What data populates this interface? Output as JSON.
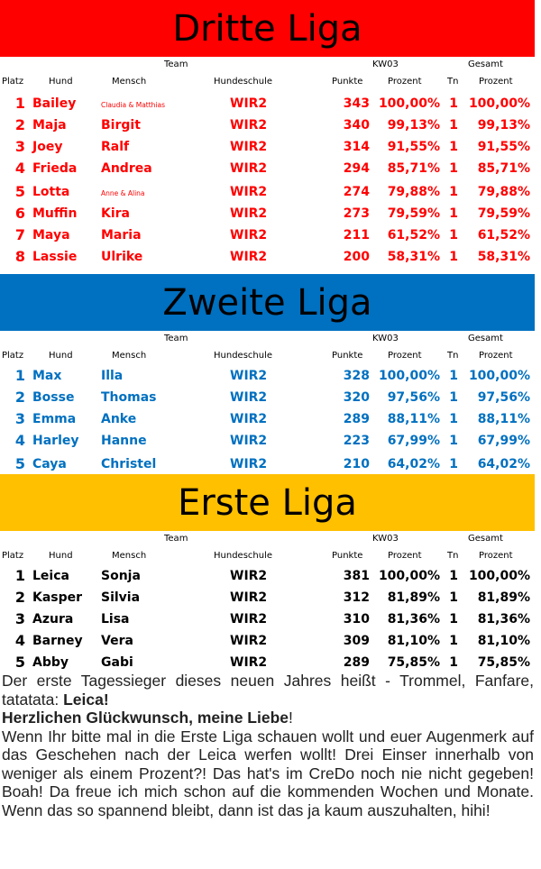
{
  "leagues": [
    {
      "title": "Dritte Liga",
      "color": "#ff0000",
      "banner_color": "#ff0000",
      "group_headers": {
        "team": "Team",
        "week": "KW03",
        "total": "Gesamt"
      },
      "columns": {
        "platz": "Platz",
        "hund": "Hund",
        "mensch": "Mensch",
        "schule": "Hundeschule",
        "punkte": "Punkte",
        "prozent": "Prozent",
        "tn": "Tn",
        "prozent_total": "Prozent"
      },
      "rows": [
        {
          "rank": "1",
          "dog": "Bailey",
          "human": "Claudia & Matthias",
          "school": "WIR2",
          "points": "343",
          "percent": "100,00%",
          "tn": "1",
          "total": "100,00%"
        },
        {
          "rank": "2",
          "dog": "Maja",
          "human": "Birgit",
          "school": "WIR2",
          "points": "340",
          "percent": "99,13%",
          "tn": "1",
          "total": "99,13%"
        },
        {
          "rank": "3",
          "dog": "Joey",
          "human": "Ralf",
          "school": "WIR2",
          "points": "314",
          "percent": "91,55%",
          "tn": "1",
          "total": "91,55%"
        },
        {
          "rank": "4",
          "dog": "Frieda",
          "human": "Andrea",
          "school": "WIR2",
          "points": "294",
          "percent": "85,71%",
          "tn": "1",
          "total": "85,71%"
        },
        {
          "rank": "5",
          "dog": "Lotta",
          "human": "Anne & Alina",
          "school": "WIR2",
          "points": "274",
          "percent": "79,88%",
          "tn": "1",
          "total": "79,88%"
        },
        {
          "rank": "6",
          "dog": "Muffin",
          "human": "Kira",
          "school": "WIR2",
          "points": "273",
          "percent": "79,59%",
          "tn": "1",
          "total": "79,59%"
        },
        {
          "rank": "7",
          "dog": "Maya",
          "human": "Maria",
          "school": "WIR2",
          "points": "211",
          "percent": "61,52%",
          "tn": "1",
          "total": "61,52%"
        },
        {
          "rank": "8",
          "dog": "Lassie",
          "human": "Ulrike",
          "school": "WIR2",
          "points": "200",
          "percent": "58,31%",
          "tn": "1",
          "total": "58,31%"
        }
      ]
    },
    {
      "title": "Zweite Liga",
      "color": "#0070c0",
      "banner_color": "#0070c0",
      "group_headers": {
        "team": "Team",
        "week": "KW03",
        "total": "Gesamt"
      },
      "columns": {
        "platz": "Platz",
        "hund": "Hund",
        "mensch": "Mensch",
        "schule": "Hundeschule",
        "punkte": "Punkte",
        "prozent": "Prozent",
        "tn": "Tn",
        "prozent_total": "Prozent"
      },
      "rows": [
        {
          "rank": "1",
          "dog": "Max",
          "human": "Illa",
          "school": "WIR2",
          "points": "328",
          "percent": "100,00%",
          "tn": "1",
          "total": "100,00%"
        },
        {
          "rank": "2",
          "dog": "Bosse",
          "human": "Thomas",
          "school": "WIR2",
          "points": "320",
          "percent": "97,56%",
          "tn": "1",
          "total": "97,56%"
        },
        {
          "rank": "3",
          "dog": "Emma",
          "human": "Anke",
          "school": "WIR2",
          "points": "289",
          "percent": "88,11%",
          "tn": "1",
          "total": "88,11%"
        },
        {
          "rank": "4",
          "dog": "Harley",
          "human": "Hanne",
          "school": "WIR2",
          "points": "223",
          "percent": "67,99%",
          "tn": "1",
          "total": "67,99%"
        },
        {
          "rank": "5",
          "dog": "Caya",
          "human": "Christel",
          "school": "WIR2",
          "points": "210",
          "percent": "64,02%",
          "tn": "1",
          "total": "64,02%"
        }
      ]
    },
    {
      "title": "Erste Liga",
      "color": "#000000",
      "banner_color": "#ffc000",
      "group_headers": {
        "team": "Team",
        "week": "KW03",
        "total": "Gesamt"
      },
      "columns": {
        "platz": "Platz",
        "hund": "Hund",
        "mensch": "Mensch",
        "schule": "Hundeschule",
        "punkte": "Punkte",
        "prozent": "Prozent",
        "tn": "Tn",
        "prozent_total": "Prozent"
      },
      "rows": [
        {
          "rank": "1",
          "dog": "Leica",
          "human": "Sonja",
          "school": "WIR2",
          "points": "381",
          "percent": "100,00%",
          "tn": "1",
          "total": "100,00%"
        },
        {
          "rank": "2",
          "dog": "Kasper",
          "human": "Silvia",
          "school": "WIR2",
          "points": "312",
          "percent": "81,89%",
          "tn": "1",
          "total": "81,89%"
        },
        {
          "rank": "3",
          "dog": "Azura",
          "human": "Lisa",
          "school": "WIR2",
          "points": "310",
          "percent": "81,36%",
          "tn": "1",
          "total": "81,36%"
        },
        {
          "rank": "4",
          "dog": "Barney",
          "human": "Vera",
          "school": "WIR2",
          "points": "309",
          "percent": "81,10%",
          "tn": "1",
          "total": "81,10%"
        },
        {
          "rank": "5",
          "dog": "Abby",
          "human": "Gabi",
          "school": "WIR2",
          "points": "289",
          "percent": "75,85%",
          "tn": "1",
          "total": "75,85%"
        }
      ]
    }
  ],
  "text": {
    "p1_start": "Der erste Tagessieger dieses neuen Jahres heißt - Trommel, Fanfare, tatatata: ",
    "p1_bold": "Leica!",
    "p2_bold": "Herzlichen Glückwunsch, meine Liebe",
    "p2_end": "!",
    "p3": "Wenn Ihr bitte mal in die Erste Liga schauen wollt und euer Augenmerk auf das Geschehen nach der Leica werfen wollt! Drei Einser innerhalb von weniger als einem Prozent?! Das hat's im CreDo noch nie nicht gegeben! Boah! Da freue ich mich schon auf die kommenden Wochen und Monate. Wenn das so spannend bleibt, dann ist das ja kaum auszuhalten, hihi!"
  }
}
